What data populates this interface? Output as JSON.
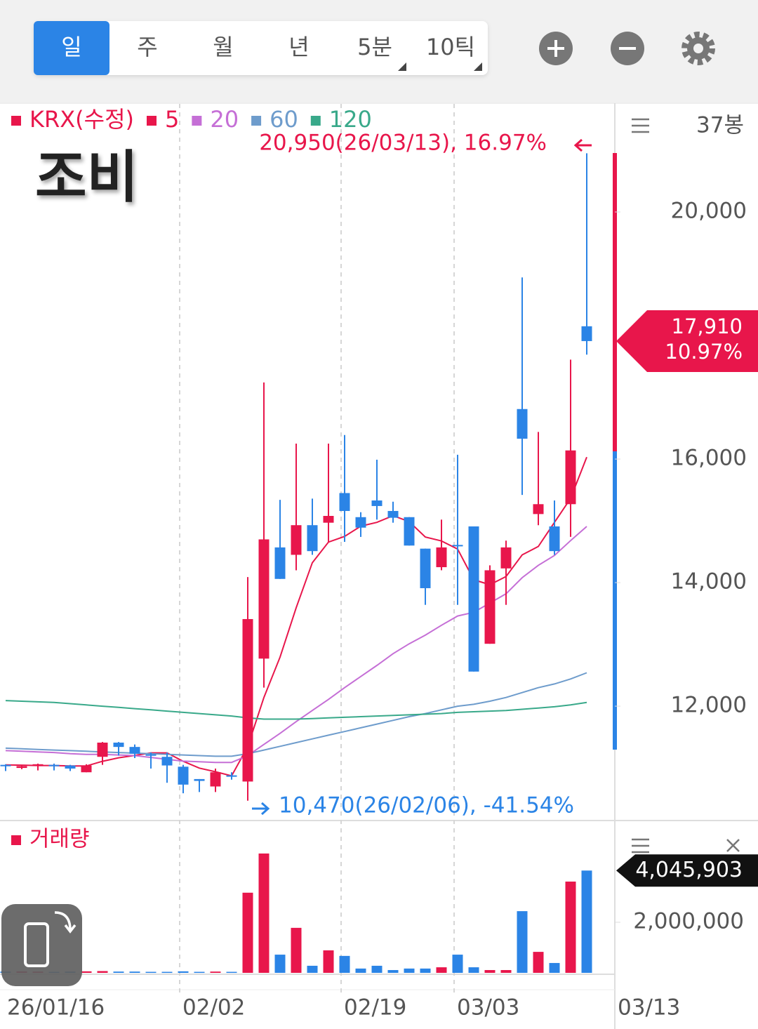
{
  "toolbar": {
    "tabs": [
      "일",
      "주",
      "월",
      "년",
      "5분",
      "10틱"
    ],
    "active": 0
  },
  "chart_data": [
    {
      "type": "candlestick",
      "title": "조비",
      "name": "KRX(수정)",
      "up_color": "#e8164b",
      "down_color": "#2b84e6",
      "bar_count_label": "37봉",
      "high_annotation": "20,950(26/03/13), 16.97%",
      "low_annotation": "10,470(26/02/06), -41.54%",
      "last_price_label": "17,910",
      "last_change_label": "10.97%",
      "categories": [
        "26/01/16",
        null,
        null,
        null,
        null,
        null,
        null,
        null,
        null,
        null,
        null,
        "02/02",
        null,
        null,
        null,
        null,
        null,
        null,
        null,
        null,
        null,
        "02/19",
        null,
        null,
        null,
        null,
        null,
        null,
        "03/03",
        null,
        null,
        null,
        null,
        null,
        null,
        null,
        "03/13"
      ],
      "open": [
        11050,
        11000,
        11030,
        11050,
        11040,
        10930,
        11180,
        11410,
        11340,
        11220,
        11180,
        11020,
        10820,
        10700,
        10880,
        10780,
        12770,
        14570,
        14450,
        14930,
        14970,
        15450,
        15060,
        15330,
        15160,
        15060,
        14550,
        14250,
        14610,
        14910,
        13010,
        14230,
        16810,
        15110,
        14910,
        15270,
        18150
      ],
      "high": [
        11060,
        11050,
        11070,
        11070,
        11050,
        11060,
        11420,
        11420,
        11380,
        11250,
        11250,
        11050,
        10820,
        10990,
        10930,
        14090,
        17240,
        15340,
        16250,
        15360,
        16250,
        16390,
        15140,
        15990,
        15310,
        15060,
        14550,
        15020,
        16070,
        14910,
        14280,
        14680,
        18940,
        16440,
        15330,
        17610,
        20950
      ],
      "low": [
        10950,
        10980,
        10960,
        10960,
        10950,
        10930,
        11050,
        11200,
        11160,
        10990,
        10760,
        10590,
        10610,
        10610,
        10810,
        10470,
        12300,
        14060,
        14200,
        14450,
        14660,
        14660,
        14740,
        15020,
        14970,
        14600,
        13640,
        14200,
        13640,
        12560,
        13010,
        13640,
        15420,
        14930,
        14450,
        14740,
        17690
      ],
      "close": [
        11040,
        11030,
        11060,
        11040,
        10990,
        11040,
        11410,
        11340,
        11230,
        11200,
        11040,
        10730,
        10790,
        10930,
        10870,
        13410,
        14700,
        14060,
        14930,
        14510,
        15080,
        15160,
        14890,
        15240,
        15050,
        14600,
        13910,
        14570,
        14590,
        12560,
        14200,
        14570,
        16330,
        15270,
        14510,
        16140,
        17910
      ],
      "series": [
        {
          "name": "5",
          "color": "#e8164b",
          "values": [
            11050,
            11045,
            11040,
            11040,
            11032,
            11032,
            11108,
            11164,
            11202,
            11244,
            11244,
            11108,
            10998,
            10938,
            10872,
            11346,
            12140,
            12794,
            13594,
            14322,
            14656,
            14748,
            14914,
            14976,
            15084,
            14988,
            14738,
            14674,
            14544,
            14046,
            13966,
            14098,
            14450,
            14586,
            14976,
            15364,
            16032
          ]
        },
        {
          "name": "20",
          "color": "#c56fd6",
          "values": [
            11280,
            11270,
            11260,
            11250,
            11230,
            11220,
            11220,
            11210,
            11200,
            11170,
            11140,
            11110,
            11100,
            11090,
            11090,
            11200,
            11380,
            11560,
            11750,
            11930,
            12110,
            12300,
            12480,
            12660,
            12850,
            13010,
            13150,
            13310,
            13460,
            13520,
            13670,
            13820,
            14080,
            14280,
            14440,
            14680,
            14910
          ]
        },
        {
          "name": "60",
          "color": "#6e9ccc",
          "values": [
            11320,
            11310,
            11300,
            11290,
            11280,
            11270,
            11260,
            11250,
            11240,
            11230,
            11220,
            11210,
            11200,
            11190,
            11190,
            11230,
            11290,
            11350,
            11410,
            11470,
            11530,
            11590,
            11650,
            11710,
            11770,
            11830,
            11880,
            11940,
            12000,
            12030,
            12080,
            12140,
            12220,
            12300,
            12360,
            12440,
            12540
          ]
        },
        {
          "name": "120",
          "color": "#39a98a",
          "values": [
            12090,
            12080,
            12070,
            12060,
            12040,
            12020,
            12000,
            11980,
            11960,
            11940,
            11920,
            11900,
            11880,
            11860,
            11840,
            11810,
            11790,
            11790,
            11790,
            11800,
            11810,
            11820,
            11830,
            11840,
            11850,
            11860,
            11870,
            11880,
            11900,
            11910,
            11920,
            11930,
            11950,
            11970,
            11990,
            12020,
            12060
          ]
        }
      ],
      "ylim": [
        10160,
        21750
      ],
      "yticks": [
        {
          "value": 12000,
          "label": "12,000"
        },
        {
          "value": 14000,
          "label": "14,000"
        },
        {
          "value": 16000,
          "label": "16,000"
        },
        {
          "value": 20000,
          "label": "20,000"
        }
      ]
    },
    {
      "type": "bar",
      "title": "거래량",
      "values": [
        50000,
        60000,
        50000,
        40000,
        50000,
        60000,
        70000,
        50000,
        50000,
        40000,
        40000,
        60000,
        40000,
        50000,
        40000,
        3170000,
        4720000,
        720000,
        1780000,
        280000,
        890000,
        670000,
        170000,
        280000,
        110000,
        170000,
        170000,
        220000,
        720000,
        220000,
        110000,
        110000,
        2440000,
        830000,
        390000,
        3610000,
        4045903
      ],
      "value_labels": [
        null,
        null,
        null,
        null,
        null,
        null,
        null,
        null,
        null,
        null,
        null,
        null,
        null,
        null,
        null,
        null,
        null,
        null,
        null,
        null,
        null,
        null,
        null,
        null,
        null,
        null,
        null,
        null,
        null,
        null,
        null,
        null,
        null,
        null,
        null,
        null,
        "4,045,903"
      ],
      "ylim": [
        0,
        5580000
      ],
      "yticks": [
        {
          "value": 2000000,
          "label": "2,000,000"
        }
      ]
    }
  ]
}
